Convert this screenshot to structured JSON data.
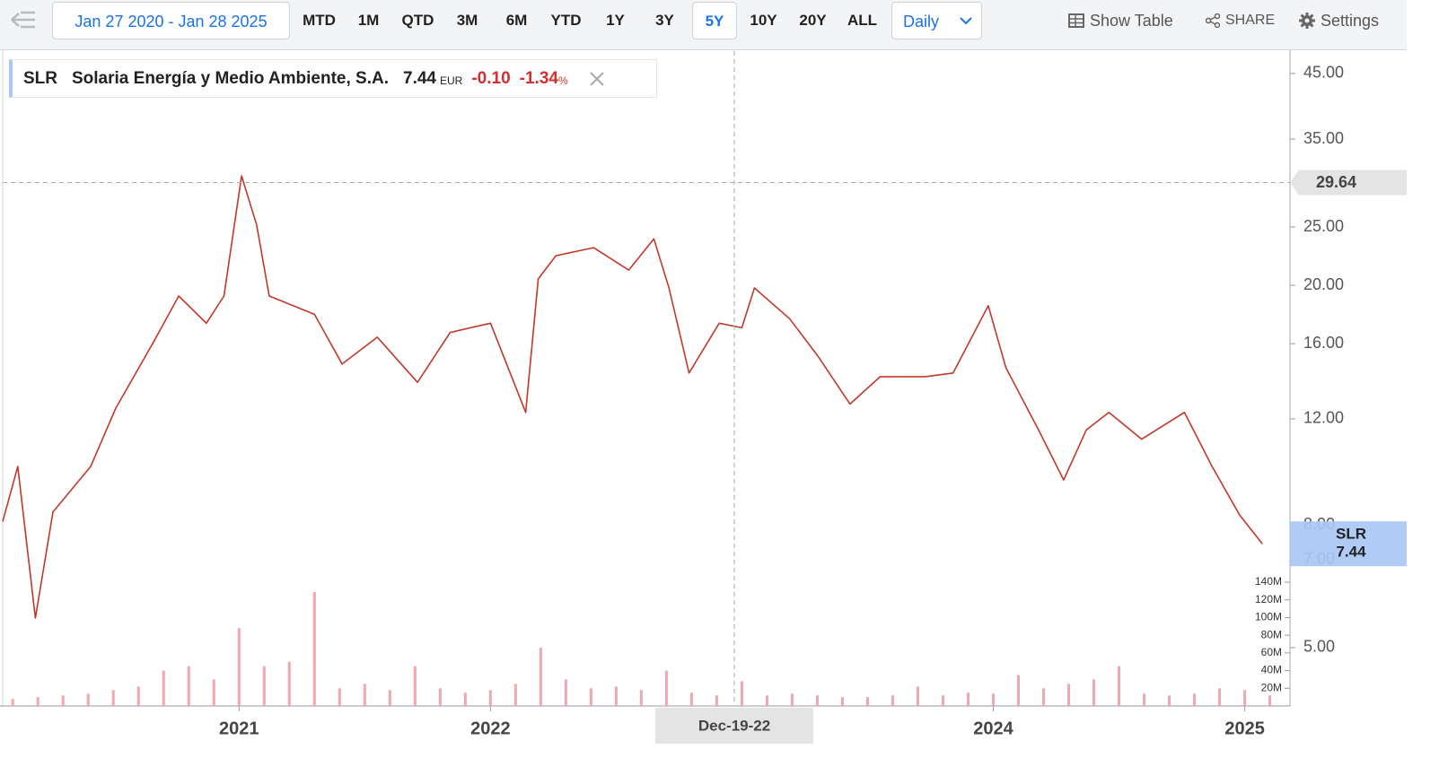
{
  "toolbar": {
    "date_range": "Jan 27 2020 - Jan 28 2025",
    "ranges": [
      "MTD",
      "1M",
      "QTD",
      "3M",
      "6M",
      "YTD",
      "1Y",
      "3Y",
      "5Y",
      "10Y",
      "20Y",
      "ALL"
    ],
    "interval": "Daily",
    "show_table": "Show Table",
    "share": "SHARE",
    "settings": "Settings"
  },
  "legend": {
    "name": "Solaria Energía y Medio Ambiente, S.A.",
    "currency": "EUR",
    "change": "-0.10",
    "change_pct": "-1.34",
    "percent_sign": "%"
  },
  "chart_data": [
    {
      "type": "line",
      "log_y": true,
      "x": [
        2020.06,
        2020.12,
        2020.19,
        2020.26,
        2020.41,
        2020.51,
        2020.66,
        2020.76,
        2020.87,
        2020.94,
        2021.01,
        2021.07,
        2021.12,
        2021.3,
        2021.41,
        2021.55,
        2021.71,
        2021.84,
        2022.0,
        2022.14,
        2022.19,
        2022.26,
        2022.41,
        2022.55,
        2022.65,
        2022.71,
        2022.79,
        2022.91,
        2023.0,
        2023.05,
        2023.19,
        2023.3,
        2023.43,
        2023.55,
        2023.73,
        2023.84,
        2023.98,
        2024.05,
        2024.18,
        2024.28,
        2024.37,
        2024.46,
        2024.59,
        2024.76,
        2024.87,
        2024.98,
        2025.07
      ],
      "series": [
        {
          "name": "SLR",
          "color": "#c0392b",
          "values": [
            8.1,
            10.0,
            5.6,
            8.4,
            10.0,
            12.5,
            16.1,
            19.2,
            17.3,
            19.2,
            30.4,
            25.2,
            19.2,
            17.9,
            14.8,
            16.4,
            13.8,
            16.7,
            17.3,
            12.3,
            20.5,
            22.4,
            23.1,
            21.2,
            23.9,
            19.8,
            14.3,
            17.3,
            17.0,
            19.8,
            17.6,
            15.3,
            12.7,
            14.1,
            14.1,
            14.3,
            18.5,
            14.6,
            11.5,
            9.5,
            11.5,
            12.3,
            11.1,
            12.3,
            10.0,
            8.3,
            7.44
          ]
        }
      ],
      "xlim": [
        2020.06,
        2025.18
      ],
      "xticks": [
        2021,
        2022,
        2024,
        2025
      ],
      "ylim": [
        4,
        49
      ],
      "yticks": [
        {
          "value": 45,
          "label": "45.00"
        },
        {
          "value": 35,
          "label": "35.00"
        },
        {
          "value": 25,
          "label": "25.00"
        },
        {
          "value": 20,
          "label": "20.00"
        },
        {
          "value": 16,
          "label": "16.00"
        },
        {
          "value": 12,
          "label": "12.00"
        },
        {
          "value": 8,
          "label": "8.00"
        },
        {
          "value": 7,
          "label": "7.00"
        },
        {
          "value": 5,
          "label": "5.00"
        }
      ],
      "crosshair": {
        "x": 2022.97,
        "x_label": "Dec-19-22",
        "y": 29.64
      }
    },
    {
      "type": "bar",
      "x": [
        2020.1,
        2020.2,
        2020.3,
        2020.4,
        2020.5,
        2020.6,
        2020.7,
        2020.8,
        2020.9,
        2021.0,
        2021.1,
        2021.2,
        2021.3,
        2021.4,
        2021.5,
        2021.6,
        2021.7,
        2021.8,
        2021.9,
        2022.0,
        2022.1,
        2022.2,
        2022.3,
        2022.4,
        2022.5,
        2022.6,
        2022.7,
        2022.8,
        2022.9,
        2023.0,
        2023.1,
        2023.2,
        2023.3,
        2023.4,
        2023.5,
        2023.6,
        2023.7,
        2023.8,
        2023.9,
        2024.0,
        2024.1,
        2024.2,
        2024.3,
        2024.4,
        2024.5,
        2024.6,
        2024.7,
        2024.8,
        2024.9,
        2025.0,
        2025.1
      ],
      "values": [
        8000000,
        10000000,
        12000000,
        14000000,
        18000000,
        22000000,
        40000000,
        45000000,
        30000000,
        88000000,
        45000000,
        50000000,
        129000000,
        20000000,
        25000000,
        18000000,
        45000000,
        20000000,
        15000000,
        18000000,
        25000000,
        66000000,
        30000000,
        20000000,
        22000000,
        18000000,
        40000000,
        15000000,
        12000000,
        28000000,
        12000000,
        14000000,
        12000000,
        10000000,
        10000000,
        12000000,
        22000000,
        12000000,
        15000000,
        14000000,
        35000000,
        20000000,
        25000000,
        30000000,
        45000000,
        14000000,
        12000000,
        14000000,
        20000000,
        18000000,
        12000000
      ],
      "color": "#f2a7ad",
      "xlim": [
        2020.06,
        2025.18
      ],
      "ylim": [
        0,
        140000000
      ],
      "yticks": [
        {
          "value": 20000000,
          "label": "20M"
        },
        {
          "value": 40000000,
          "label": "40M"
        },
        {
          "value": 60000000,
          "label": "60M"
        },
        {
          "value": 80000000,
          "label": "80M"
        },
        {
          "value": 100000000,
          "label": "100M"
        },
        {
          "value": 120000000,
          "label": "120M"
        },
        {
          "value": 140000000,
          "label": "140M"
        }
      ]
    }
  ]
}
